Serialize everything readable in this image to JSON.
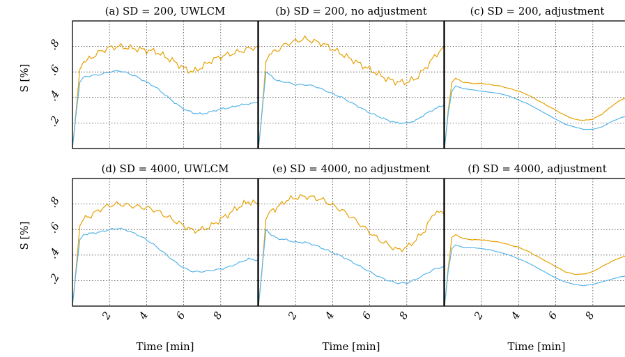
{
  "figure": {
    "ylabel": "S [%]",
    "xlabel": "Time [min]"
  },
  "colors": {
    "series_a": "#E69F00",
    "series_b": "#56B4E9"
  },
  "chart_data": [
    {
      "type": "line",
      "title": "(a) SD = 200, UWLCM",
      "xlim": [
        0,
        10
      ],
      "ylim": [
        0,
        1.0
      ],
      "xticks": [
        2,
        4,
        6,
        8
      ],
      "yticks": [
        0.2,
        0.4,
        0.6,
        0.8
      ],
      "grid": true,
      "x": [
        0,
        0.2,
        0.4,
        0.6,
        1.0,
        1.5,
        2.0,
        2.5,
        3.0,
        3.5,
        4.0,
        4.5,
        5.0,
        5.5,
        6.0,
        6.5,
        7.0,
        7.5,
        8.0,
        8.5,
        9.0,
        9.5,
        10.0
      ],
      "series": [
        {
          "values": [
            0.0,
            0.3,
            0.62,
            0.68,
            0.71,
            0.76,
            0.79,
            0.8,
            0.79,
            0.78,
            0.77,
            0.76,
            0.72,
            0.68,
            0.63,
            0.6,
            0.64,
            0.69,
            0.72,
            0.74,
            0.76,
            0.78,
            0.8
          ]
        },
        {
          "values": [
            0.0,
            0.28,
            0.52,
            0.56,
            0.57,
            0.58,
            0.6,
            0.61,
            0.59,
            0.56,
            0.52,
            0.48,
            0.42,
            0.36,
            0.31,
            0.28,
            0.27,
            0.29,
            0.31,
            0.32,
            0.34,
            0.35,
            0.36
          ]
        }
      ]
    },
    {
      "type": "line",
      "title": "(b) SD = 200, no adjustment",
      "xlim": [
        0,
        10
      ],
      "ylim": [
        0,
        1.0
      ],
      "xticks": [
        2,
        4,
        6,
        8
      ],
      "yticks": [
        0.2,
        0.4,
        0.6,
        0.8
      ],
      "grid": true,
      "x": [
        0,
        0.2,
        0.4,
        0.6,
        1.0,
        1.5,
        2.0,
        2.5,
        3.0,
        3.5,
        4.0,
        4.5,
        5.0,
        5.5,
        6.0,
        6.5,
        7.0,
        7.5,
        8.0,
        8.5,
        9.0,
        9.5,
        10.0
      ],
      "series": [
        {
          "values": [
            0.0,
            0.3,
            0.68,
            0.74,
            0.77,
            0.82,
            0.84,
            0.86,
            0.84,
            0.82,
            0.78,
            0.74,
            0.7,
            0.66,
            0.62,
            0.58,
            0.54,
            0.52,
            0.52,
            0.55,
            0.63,
            0.72,
            0.8
          ]
        },
        {
          "values": [
            0.0,
            0.3,
            0.6,
            0.58,
            0.53,
            0.52,
            0.5,
            0.5,
            0.49,
            0.46,
            0.43,
            0.4,
            0.36,
            0.32,
            0.28,
            0.25,
            0.22,
            0.2,
            0.2,
            0.22,
            0.27,
            0.31,
            0.34
          ]
        }
      ]
    },
    {
      "type": "line",
      "title": "(c) SD = 200, adjustment",
      "xlim": [
        0,
        10
      ],
      "ylim": [
        0,
        1.0
      ],
      "xticks": [
        2,
        4,
        6,
        8
      ],
      "yticks": [
        0.2,
        0.4,
        0.6,
        0.8
      ],
      "grid": true,
      "x": [
        0,
        0.2,
        0.4,
        0.6,
        1.0,
        1.5,
        2.0,
        2.5,
        3.0,
        3.5,
        4.0,
        4.5,
        5.0,
        5.5,
        6.0,
        6.5,
        7.0,
        7.5,
        8.0,
        8.5,
        9.0,
        9.5,
        10.0
      ],
      "series": [
        {
          "values": [
            0.0,
            0.3,
            0.52,
            0.55,
            0.52,
            0.51,
            0.51,
            0.5,
            0.49,
            0.47,
            0.45,
            0.42,
            0.38,
            0.34,
            0.3,
            0.26,
            0.23,
            0.22,
            0.23,
            0.27,
            0.33,
            0.38,
            0.41
          ]
        },
        {
          "values": [
            0.0,
            0.28,
            0.45,
            0.49,
            0.47,
            0.46,
            0.45,
            0.44,
            0.43,
            0.41,
            0.38,
            0.35,
            0.31,
            0.27,
            0.23,
            0.19,
            0.17,
            0.15,
            0.15,
            0.17,
            0.21,
            0.24,
            0.26
          ]
        }
      ]
    },
    {
      "type": "line",
      "title": "(d) SD = 4000, UWLCM",
      "xlim": [
        0,
        10
      ],
      "ylim": [
        0,
        1.0
      ],
      "xticks": [
        2,
        4,
        6,
        8
      ],
      "yticks": [
        0.2,
        0.4,
        0.6,
        0.8
      ],
      "grid": true,
      "x": [
        0,
        0.2,
        0.4,
        0.6,
        1.0,
        1.5,
        2.0,
        2.5,
        3.0,
        3.5,
        4.0,
        4.5,
        5.0,
        5.5,
        6.0,
        6.5,
        7.0,
        7.5,
        8.0,
        8.5,
        9.0,
        9.5,
        10.0
      ],
      "series": [
        {
          "values": [
            0.0,
            0.3,
            0.63,
            0.68,
            0.71,
            0.76,
            0.79,
            0.8,
            0.79,
            0.78,
            0.77,
            0.75,
            0.71,
            0.67,
            0.63,
            0.59,
            0.6,
            0.63,
            0.68,
            0.73,
            0.78,
            0.82,
            0.8
          ]
        },
        {
          "values": [
            0.0,
            0.28,
            0.52,
            0.56,
            0.57,
            0.58,
            0.6,
            0.61,
            0.59,
            0.56,
            0.52,
            0.47,
            0.41,
            0.35,
            0.3,
            0.27,
            0.27,
            0.28,
            0.29,
            0.31,
            0.34,
            0.37,
            0.36
          ]
        }
      ]
    },
    {
      "type": "line",
      "title": "(e) SD = 4000, no adjustment",
      "xlim": [
        0,
        10
      ],
      "ylim": [
        0,
        1.0
      ],
      "xticks": [
        2,
        4,
        6,
        8
      ],
      "yticks": [
        0.2,
        0.4,
        0.6,
        0.8
      ],
      "grid": true,
      "x": [
        0,
        0.2,
        0.4,
        0.6,
        1.0,
        1.5,
        2.0,
        2.5,
        3.0,
        3.5,
        4.0,
        4.5,
        5.0,
        5.5,
        6.0,
        6.5,
        7.0,
        7.5,
        8.0,
        8.5,
        9.0,
        9.5,
        10.0
      ],
      "series": [
        {
          "values": [
            0.0,
            0.3,
            0.68,
            0.74,
            0.77,
            0.83,
            0.85,
            0.86,
            0.85,
            0.83,
            0.79,
            0.75,
            0.7,
            0.64,
            0.58,
            0.52,
            0.48,
            0.44,
            0.46,
            0.52,
            0.6,
            0.74,
            0.72
          ]
        },
        {
          "values": [
            0.0,
            0.3,
            0.6,
            0.57,
            0.53,
            0.52,
            0.5,
            0.5,
            0.48,
            0.45,
            0.42,
            0.39,
            0.35,
            0.31,
            0.27,
            0.23,
            0.2,
            0.18,
            0.18,
            0.21,
            0.25,
            0.29,
            0.31
          ]
        }
      ]
    },
    {
      "type": "line",
      "title": "(f) SD = 4000, adjustment",
      "xlim": [
        0,
        10
      ],
      "ylim": [
        0,
        1.0
      ],
      "xticks": [
        2,
        4,
        6,
        8
      ],
      "yticks": [
        0.2,
        0.4,
        0.6,
        0.8
      ],
      "grid": true,
      "x": [
        0,
        0.2,
        0.4,
        0.6,
        1.0,
        1.5,
        2.0,
        2.5,
        3.0,
        3.5,
        4.0,
        4.5,
        5.0,
        5.5,
        6.0,
        6.5,
        7.0,
        7.5,
        8.0,
        8.5,
        9.0,
        9.5,
        10.0
      ],
      "series": [
        {
          "values": [
            0.0,
            0.3,
            0.54,
            0.56,
            0.53,
            0.52,
            0.52,
            0.51,
            0.5,
            0.48,
            0.46,
            0.43,
            0.39,
            0.35,
            0.31,
            0.27,
            0.25,
            0.25,
            0.27,
            0.31,
            0.35,
            0.38,
            0.4
          ]
        },
        {
          "values": [
            0.0,
            0.28,
            0.45,
            0.48,
            0.46,
            0.46,
            0.45,
            0.44,
            0.42,
            0.4,
            0.37,
            0.34,
            0.3,
            0.26,
            0.22,
            0.19,
            0.17,
            0.16,
            0.17,
            0.19,
            0.21,
            0.23,
            0.24
          ]
        }
      ]
    }
  ]
}
